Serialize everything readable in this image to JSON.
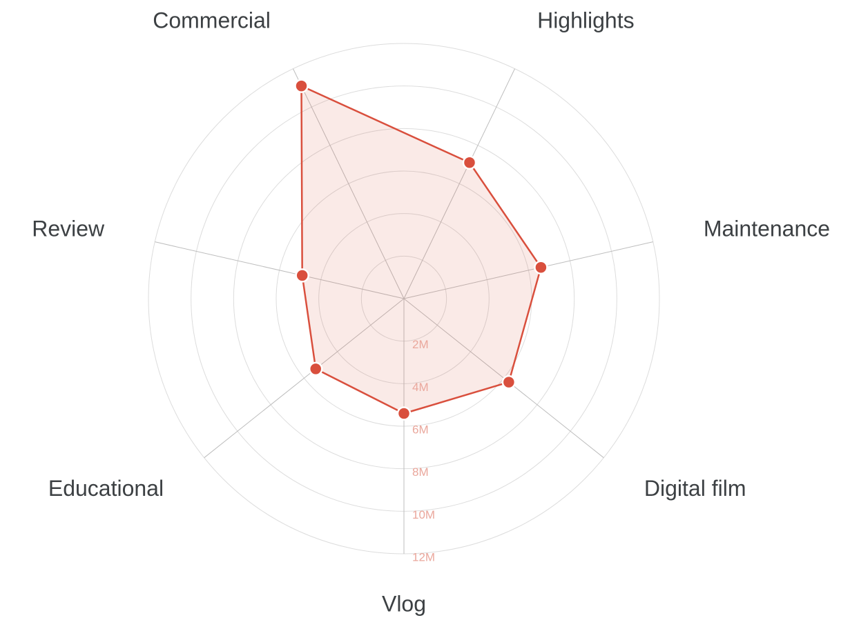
{
  "chart_data": {
    "type": "radar",
    "categories": [
      "Vlog",
      "Digital film",
      "Maintenance",
      "Highlights",
      "Commercial",
      "Review",
      "Educational"
    ],
    "values": [
      5.4,
      6.3,
      6.6,
      7.1,
      11.1,
      4.9,
      5.3
    ],
    "color": "#d94f3d",
    "ylim": [
      0,
      12
    ],
    "yticks": [
      {
        "value": 2,
        "label": "2M"
      },
      {
        "value": 4,
        "label": "4M"
      },
      {
        "value": 6,
        "label": "6M"
      },
      {
        "value": 8,
        "label": "8M"
      },
      {
        "value": 10,
        "label": "10M"
      },
      {
        "value": 12,
        "label": "12M"
      }
    ],
    "grid": true
  }
}
